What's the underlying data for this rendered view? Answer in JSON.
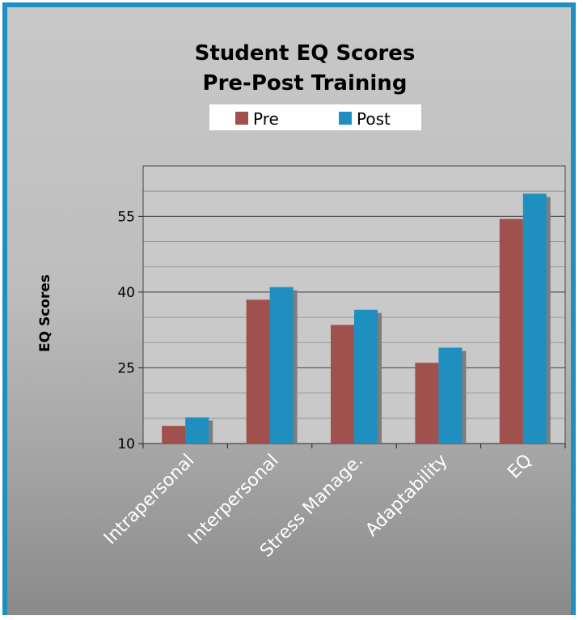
{
  "chart_data": {
    "type": "bar",
    "title": [
      "Student EQ Scores",
      "Pre-Post Training"
    ],
    "xlabel": "",
    "ylabel": "EQ Scores",
    "categories": [
      "Intrapersonal",
      "Interpersonal",
      "Stress Manage.",
      "Adaptability",
      "EQ"
    ],
    "series": [
      {
        "name": "Pre",
        "values": [
          13.5,
          38.5,
          33.5,
          26,
          54.5
        ],
        "color": "#a0504d"
      },
      {
        "name": "Post",
        "values": [
          15.2,
          41,
          36.5,
          29,
          59.5
        ],
        "color": "#1f8fc0"
      }
    ],
    "ylim": [
      10,
      65
    ],
    "yticks": [
      "10",
      "25",
      "40",
      "55"
    ],
    "ytick_values": [
      10,
      25,
      40,
      55
    ],
    "grid": true,
    "legend_position": "top-center",
    "colors": {
      "frame": "#1f8fc0",
      "plot_bg": "#c8c8c8"
    }
  }
}
